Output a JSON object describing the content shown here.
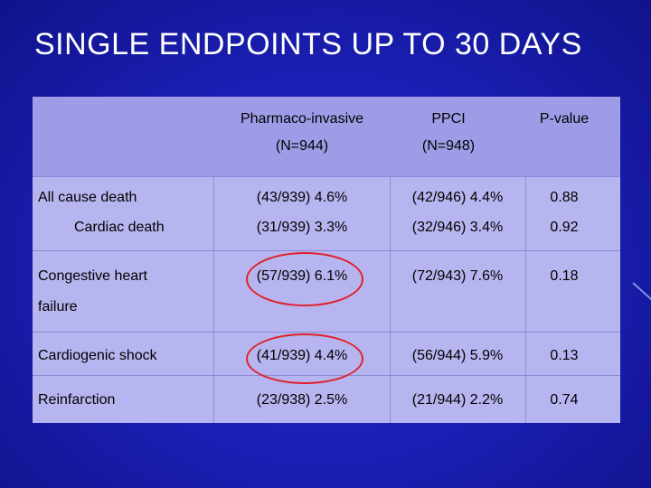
{
  "title": "SINGLE ENDPOINTS UP TO 30 DAYS",
  "table": {
    "headers": [
      {
        "line1": "Pharmaco-invasive",
        "line2": "(N=944)"
      },
      {
        "line1": "PPCI",
        "line2": "(N=948)"
      },
      {
        "line1": "P-value",
        "line2": ""
      }
    ],
    "rows": [
      {
        "label": "All cause death",
        "label2": "",
        "pi": "(43/939) 4.6%",
        "ppci": "(42/946) 4.4%",
        "p": "0.88"
      },
      {
        "label": "Cardiac death",
        "label2": "",
        "pi": "(31/939) 3.3%",
        "ppci": "(32/946) 3.4%",
        "p": "0.92"
      },
      {
        "label": "Congestive heart",
        "label2": "failure",
        "pi": "(57/939) 6.1%",
        "ppci": "(72/943) 7.6%",
        "p": "0.18"
      },
      {
        "label": "Cardiogenic shock",
        "label2": "",
        "pi": "(41/939) 4.4%",
        "ppci": "(56/944) 5.9%",
        "p": "0.13"
      },
      {
        "label": "Reinfarction",
        "label2": "",
        "pi": "(23/938) 2.5%",
        "ppci": "(21/944) 2.2%",
        "p": "0.74"
      }
    ]
  },
  "colors": {
    "background": "#1c20b8",
    "table_body": "#b7b5ef",
    "table_header": "#9e9ce7",
    "highlight_circle": "#e0202a"
  }
}
